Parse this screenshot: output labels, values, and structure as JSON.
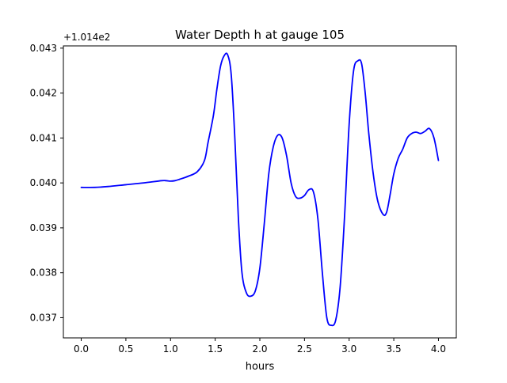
{
  "chart_data": {
    "type": "line",
    "title": "Water Depth h at gauge 105",
    "xlabel": "hours",
    "ylabel": "",
    "y_offset_label": "+1.014e2",
    "xlim": [
      -0.2,
      4.2
    ],
    "ylim": [
      0.03655,
      0.04305
    ],
    "xticks": [
      0.0,
      0.5,
      1.0,
      1.5,
      2.0,
      2.5,
      3.0,
      3.5,
      4.0
    ],
    "xtick_labels": [
      "0.0",
      "0.5",
      "1.0",
      "1.5",
      "2.0",
      "2.5",
      "3.0",
      "3.5",
      "4.0"
    ],
    "yticks": [
      0.037,
      0.038,
      0.039,
      0.04,
      0.041,
      0.042,
      0.043
    ],
    "ytick_labels": [
      "0.037",
      "0.038",
      "0.039",
      "0.040",
      "0.041",
      "0.042",
      "0.043"
    ],
    "grid": false,
    "series": [
      {
        "color": "#0000ff",
        "x": [
          0.0,
          0.15,
          0.3,
          0.5,
          0.7,
          0.9,
          0.95,
          1.0,
          1.05,
          1.1,
          1.2,
          1.3,
          1.38,
          1.42,
          1.48,
          1.52,
          1.56,
          1.6,
          1.64,
          1.68,
          1.72,
          1.76,
          1.8,
          1.85,
          1.9,
          1.95,
          2.0,
          2.05,
          2.1,
          2.15,
          2.2,
          2.25,
          2.3,
          2.35,
          2.4,
          2.45,
          2.5,
          2.55,
          2.6,
          2.65,
          2.7,
          2.75,
          2.8,
          2.85,
          2.9,
          2.95,
          3.0,
          3.05,
          3.1,
          3.14,
          3.18,
          3.22,
          3.27,
          3.32,
          3.38,
          3.42,
          3.46,
          3.5,
          3.55,
          3.6,
          3.65,
          3.7,
          3.75,
          3.8,
          3.85,
          3.9,
          3.95,
          4.0
        ],
        "y": [
          0.0399,
          0.0399,
          0.03992,
          0.03996,
          0.04,
          0.04005,
          0.04005,
          0.04004,
          0.04005,
          0.04008,
          0.04015,
          0.04025,
          0.0405,
          0.0409,
          0.0415,
          0.0421,
          0.0426,
          0.04283,
          0.04285,
          0.0424,
          0.041,
          0.0392,
          0.038,
          0.03755,
          0.03748,
          0.0376,
          0.0381,
          0.0391,
          0.0402,
          0.0408,
          0.04106,
          0.041,
          0.0406,
          0.04,
          0.0397,
          0.03966,
          0.03972,
          0.03985,
          0.0398,
          0.0392,
          0.038,
          0.037,
          0.03683,
          0.03695,
          0.0377,
          0.0393,
          0.0413,
          0.0425,
          0.04272,
          0.04265,
          0.042,
          0.0411,
          0.0402,
          0.0396,
          0.0393,
          0.03935,
          0.03975,
          0.0402,
          0.04055,
          0.04075,
          0.041,
          0.0411,
          0.04113,
          0.0411,
          0.04115,
          0.04121,
          0.041,
          0.0405
        ]
      }
    ]
  }
}
